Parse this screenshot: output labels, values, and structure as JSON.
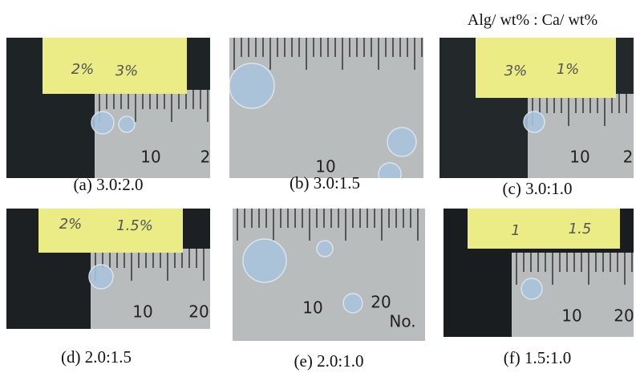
{
  "header": {
    "legend": "Alg/ wt% : Ca/ wt%"
  },
  "panels": [
    {
      "caption": "(a) 3.0:2.0",
      "note": [
        "2%",
        "3%"
      ],
      "ruler": [
        "10",
        "2"
      ]
    },
    {
      "caption": "(b) 3.0:1.5",
      "ruler": [
        "10"
      ]
    },
    {
      "caption": "(c) 3.0:1.0",
      "note": [
        "3%",
        "1%"
      ],
      "ruler": [
        "10",
        "2"
      ]
    },
    {
      "caption": "(d) 2.0:1.5",
      "note": [
        "2%",
        "1.5%"
      ],
      "ruler": [
        "10",
        "20"
      ]
    },
    {
      "caption": "(e) 2.0:1.0",
      "ruler": [
        "10",
        "20",
        "No."
      ]
    },
    {
      "caption": "(f) 1.5:1.0",
      "note": [
        "1",
        "1.5"
      ],
      "ruler": [
        "10",
        "20"
      ]
    }
  ]
}
